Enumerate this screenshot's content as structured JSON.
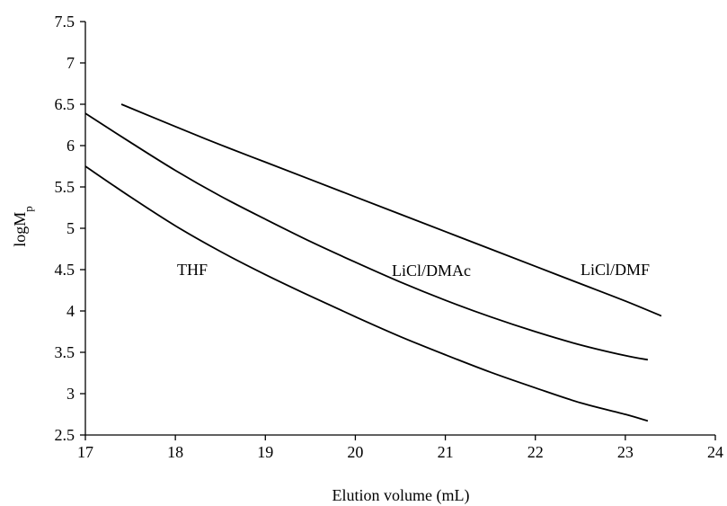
{
  "chart_data": {
    "type": "line",
    "title": "",
    "xlabel": "Elution volume (mL)",
    "ylabel_main": "logM",
    "ylabel_sub": "p",
    "xlim": [
      17,
      24
    ],
    "ylim": [
      2.5,
      7.5
    ],
    "x_ticks": [
      "17",
      "18",
      "19",
      "20",
      "21",
      "22",
      "23",
      "24"
    ],
    "y_ticks": [
      "2.5",
      "3",
      "3.5",
      "4",
      "4.5",
      "5",
      "5.5",
      "6",
      "6.5",
      "7",
      "7.5"
    ],
    "grid": false,
    "legend": "none",
    "series": [
      {
        "name": "THF",
        "x": [
          17.0,
          17.5,
          18.0,
          18.5,
          19.0,
          19.5,
          20.0,
          20.5,
          21.0,
          21.5,
          22.0,
          22.5,
          23.0,
          23.25
        ],
        "y": [
          5.75,
          5.38,
          5.03,
          4.72,
          4.44,
          4.18,
          3.93,
          3.69,
          3.47,
          3.26,
          3.07,
          2.89,
          2.75,
          2.67
        ]
      },
      {
        "name": "LiCl/DMAc",
        "x": [
          17.0,
          17.5,
          18.0,
          18.5,
          19.0,
          19.5,
          20.0,
          20.5,
          21.0,
          21.5,
          22.0,
          22.5,
          23.0,
          23.25
        ],
        "y": [
          6.39,
          6.04,
          5.7,
          5.39,
          5.11,
          4.84,
          4.59,
          4.35,
          4.13,
          3.93,
          3.75,
          3.59,
          3.46,
          3.41
        ]
      },
      {
        "name": "LiCl/DMF",
        "x": [
          17.4,
          18.0,
          18.5,
          19.0,
          19.5,
          20.0,
          20.5,
          21.0,
          21.5,
          22.0,
          22.5,
          23.0,
          23.4
        ],
        "y": [
          6.5,
          6.23,
          6.01,
          5.8,
          5.59,
          5.38,
          5.17,
          4.96,
          4.75,
          4.54,
          4.33,
          4.12,
          3.94
        ]
      }
    ]
  },
  "labels": {
    "thf": "THF",
    "dmac": "LiCl/DMAc",
    "dmf": "LiCl/DMF"
  }
}
